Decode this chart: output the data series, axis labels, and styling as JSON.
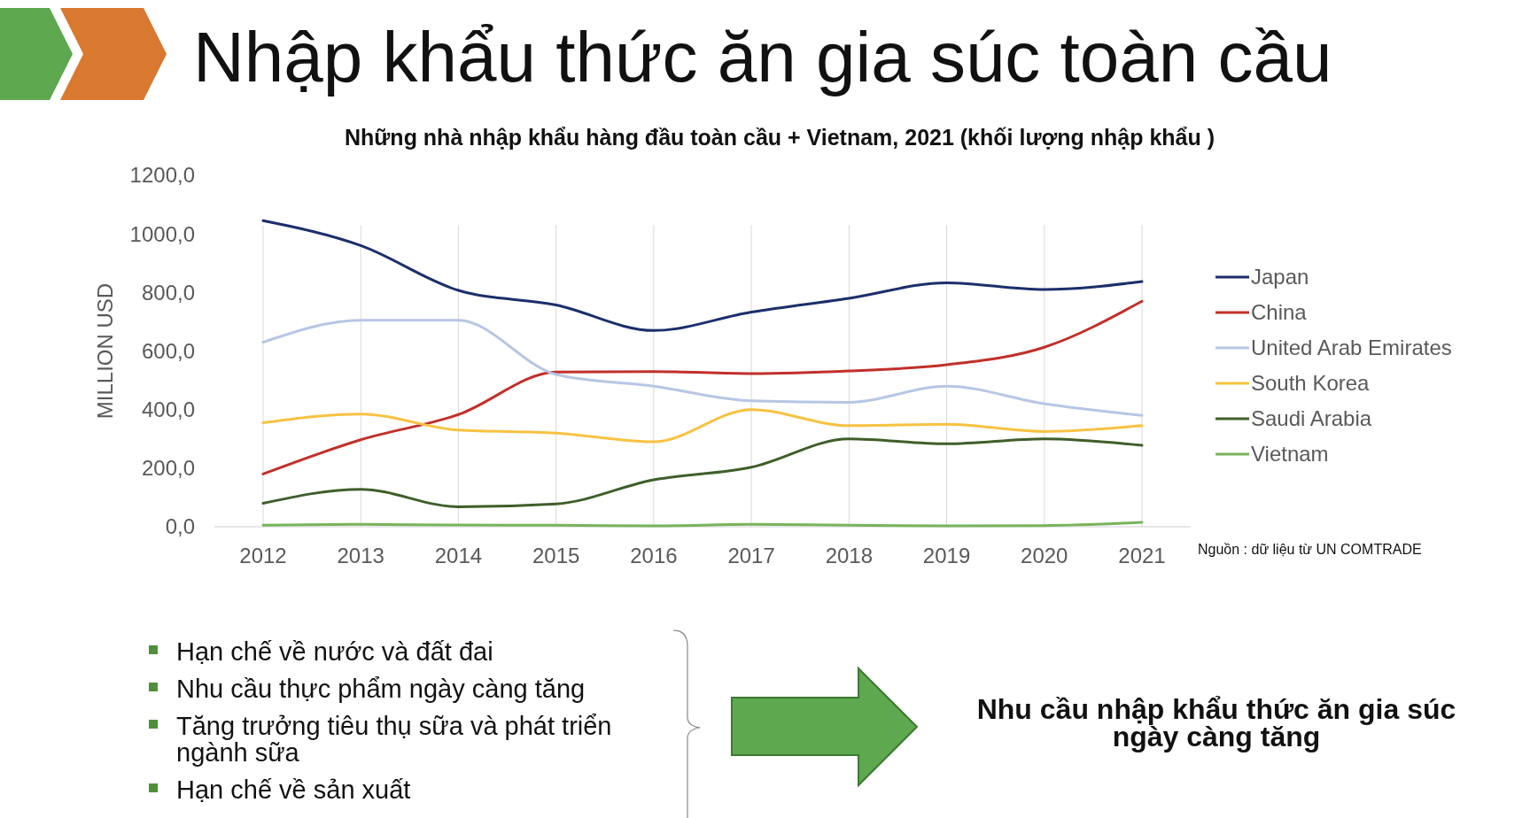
{
  "chart_data": {
    "type": "line",
    "title": "Nhập khẩu thức ăn gia súc toàn cầu",
    "subtitle": "Những nhà nhập khẩu hàng đầu toàn cầu  + Vietnam, 2021 (khối lượng nhập khẩu )",
    "ylabel": "MILLION USD",
    "categories": [
      "2012",
      "2013",
      "2014",
      "2015",
      "2016",
      "2017",
      "2018",
      "2019",
      "2020",
      "2021"
    ],
    "series": [
      {
        "name": "Japan",
        "color": "#1c2e6b",
        "values": [
          1045,
          960,
          807,
          757,
          670,
          733,
          780,
          833,
          810,
          837
        ]
      },
      {
        "name": "China",
        "color": "#c0302a",
        "values": [
          180,
          297,
          383,
          528,
          530,
          523,
          532,
          553,
          613,
          770
        ]
      },
      {
        "name": "United Arab Emirates",
        "color": "#b7c6e4",
        "values": [
          630,
          705,
          705,
          520,
          480,
          430,
          425,
          480,
          420,
          380
        ]
      },
      {
        "name": "South Korea",
        "color": "#f7c242",
        "values": [
          355,
          385,
          330,
          320,
          290,
          400,
          345,
          350,
          325,
          345
        ]
      },
      {
        "name": "Saudi Arabia",
        "color": "#3f5e2a",
        "values": [
          80,
          128,
          68,
          78,
          160,
          203,
          300,
          283,
          300,
          278
        ]
      },
      {
        "name": "Vietnam",
        "color": "#77b45a",
        "values": [
          5,
          8,
          6,
          5,
          3,
          8,
          5,
          3,
          4,
          15
        ]
      }
    ],
    "ylim": [
      0,
      1200
    ],
    "yticks": [
      {
        "value": 0,
        "label": "0,0"
      },
      {
        "value": 200,
        "label": "200,0"
      },
      {
        "value": 400,
        "label": "400,0"
      },
      {
        "value": 600,
        "label": "600,0"
      },
      {
        "value": 800,
        "label": "800,0"
      },
      {
        "value": 1000,
        "label": "1000,0"
      },
      {
        "value": 1200,
        "label": "1200,0"
      }
    ],
    "grid": "x",
    "legend": "right",
    "marker": "none",
    "line_style": "solid",
    "annotations": [
      "Nguồn : dữ liệu từ UN COMTRADE",
      "Hạn chế về nước và đất đai",
      "Nhu cầu thực phẩm ngày càng tăng",
      "Tăng trưởng tiêu thụ sữa và phát triển ngành sữa",
      "Hạn chế về sản xuất",
      "Nhu cầu nhập khẩu thức ăn gia súc ngày càng tăng"
    ]
  }
}
